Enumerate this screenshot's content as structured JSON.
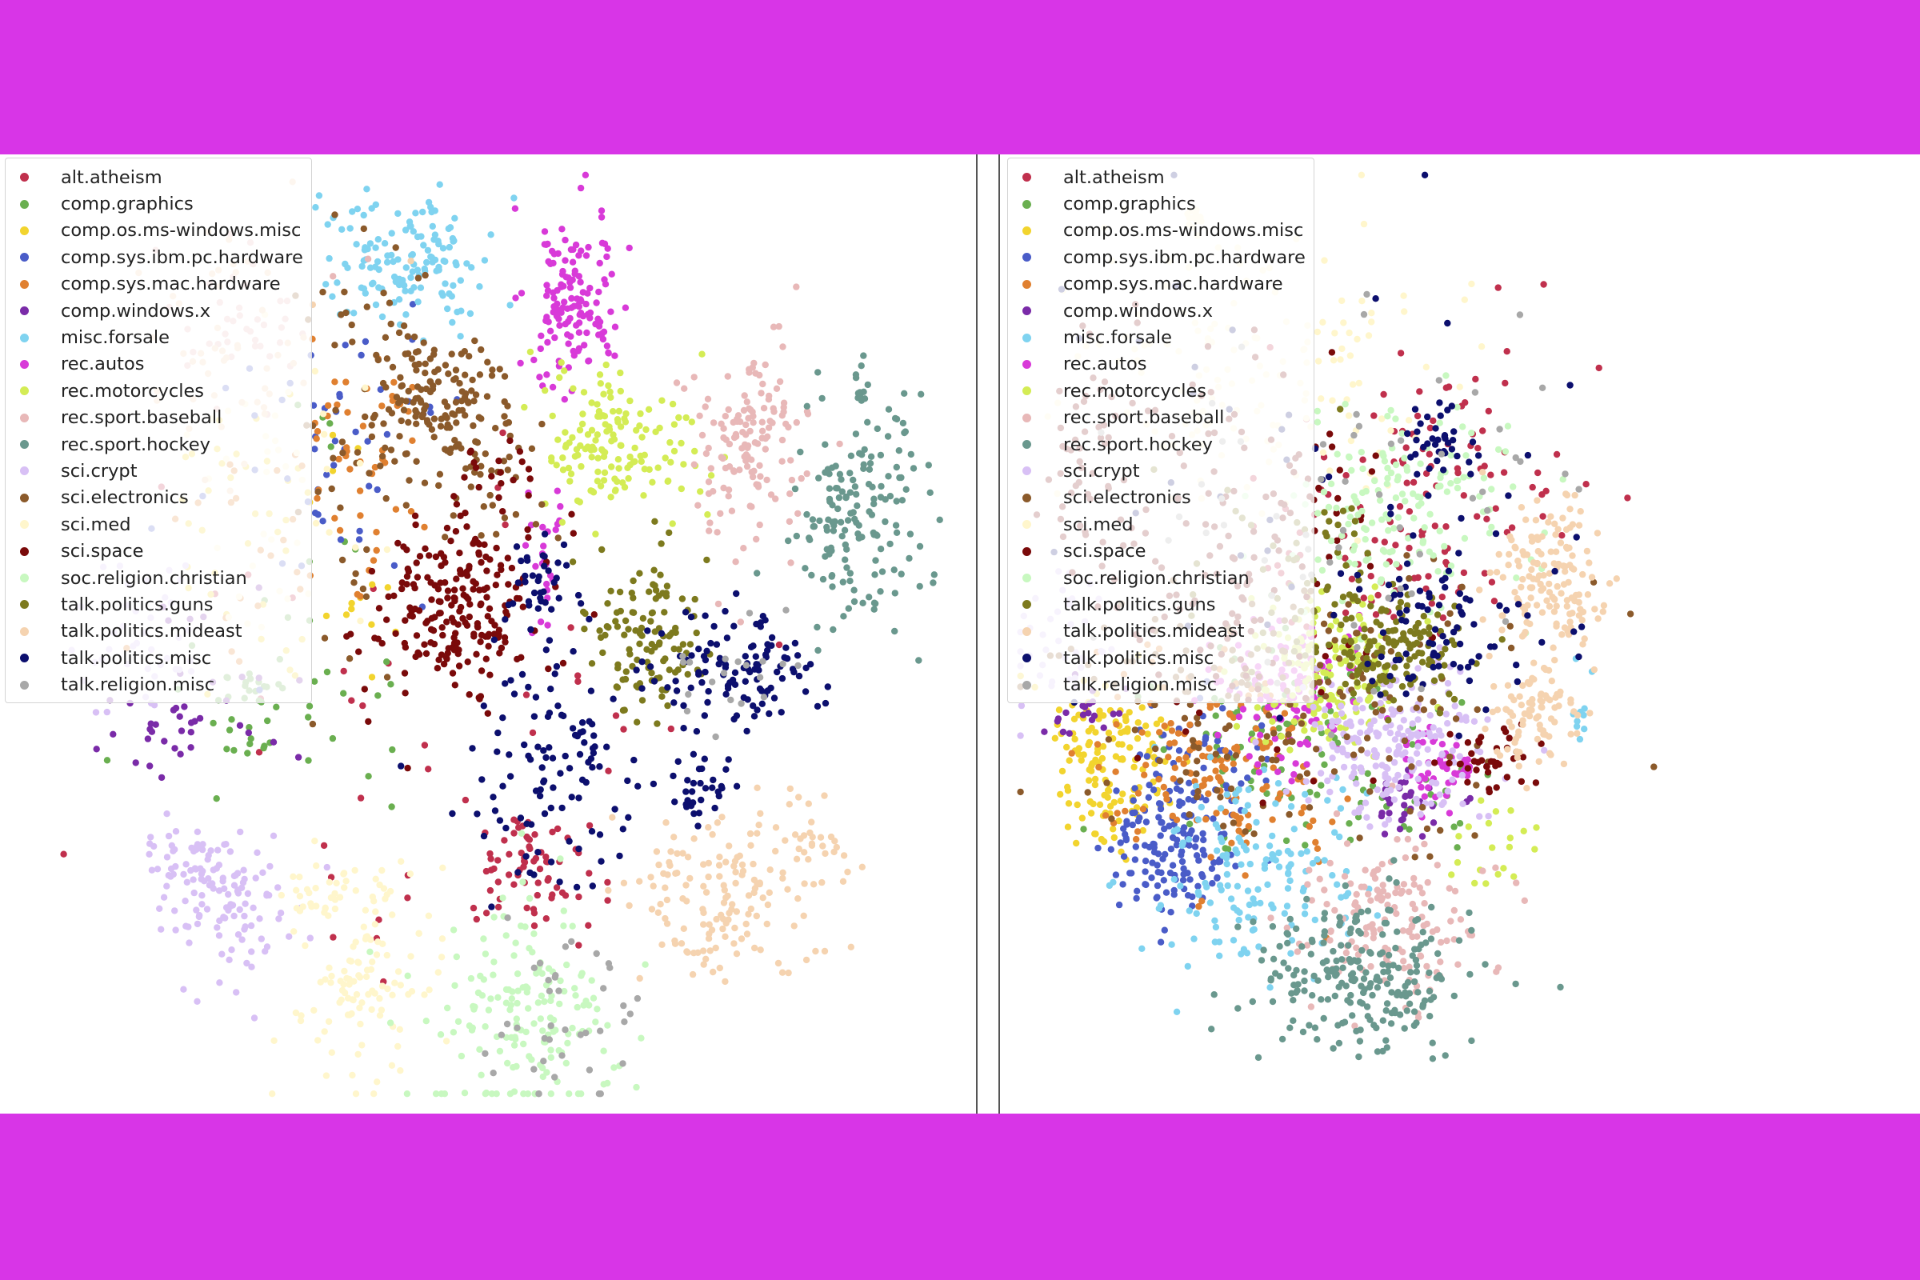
{
  "chart_data": [
    {
      "type": "scatter",
      "legend": "upper-left",
      "grid": false,
      "series": [
        {
          "name": "alt.atheism",
          "color": "#c0304d",
          "clusters": [
            [
              0.54,
              0.75,
              0.035,
              0.035,
              70
            ],
            [
              0.45,
              0.62,
              0.15,
              0.13,
              40
            ]
          ]
        },
        {
          "name": "comp.graphics",
          "color": "#6aaf50",
          "clusters": [
            [
              0.25,
              0.58,
              0.03,
              0.025,
              35
            ],
            [
              0.3,
              0.5,
              0.08,
              0.1,
              25
            ]
          ]
        },
        {
          "name": "comp.os.ms-windows.misc",
          "color": "#f2d42e",
          "clusters": [
            [
              0.24,
              0.38,
              0.05,
              0.08,
              30
            ],
            [
              0.33,
              0.45,
              0.06,
              0.08,
              20
            ]
          ]
        },
        {
          "name": "comp.sys.ibm.pc.hardware",
          "color": "#4a5cc8",
          "clusters": [
            [
              0.36,
              0.26,
              0.05,
              0.06,
              30
            ],
            [
              0.3,
              0.35,
              0.06,
              0.08,
              20
            ]
          ]
        },
        {
          "name": "comp.sys.mac.hardware",
          "color": "#e08030",
          "clusters": [
            [
              0.36,
              0.3,
              0.04,
              0.06,
              45
            ],
            [
              0.28,
              0.38,
              0.06,
              0.08,
              25
            ]
          ]
        },
        {
          "name": "comp.windows.x",
          "color": "#7a2ba8",
          "clusters": [
            [
              0.16,
              0.6,
              0.04,
              0.03,
              25
            ],
            [
              0.2,
              0.55,
              0.06,
              0.05,
              15
            ]
          ]
        },
        {
          "name": "misc.forsale",
          "color": "#7fd3f0",
          "clusters": [
            [
              0.42,
              0.1,
              0.045,
              0.035,
              140
            ]
          ]
        },
        {
          "name": "rec.autos",
          "color": "#d83ad8",
          "clusters": [
            [
              0.585,
              0.14,
              0.025,
              0.05,
              140
            ],
            [
              0.56,
              0.42,
              0.01,
              0.03,
              25
            ]
          ]
        },
        {
          "name": "rec.motorcycles",
          "color": "#d4ec55",
          "clusters": [
            [
              0.63,
              0.29,
              0.04,
              0.04,
              150
            ]
          ]
        },
        {
          "name": "rec.sport.baseball",
          "color": "#e8b8b8",
          "clusters": [
            [
              0.77,
              0.3,
              0.03,
              0.06,
              140
            ],
            [
              0.25,
              0.15,
              0.04,
              0.04,
              40
            ]
          ]
        },
        {
          "name": "rec.sport.hockey",
          "color": "#6a988e",
          "clusters": [
            [
              0.89,
              0.37,
              0.035,
              0.06,
              160
            ],
            [
              0.89,
              0.23,
              0.005,
              0.02,
              12
            ]
          ]
        },
        {
          "name": "sci.crypt",
          "color": "#d8c0f5",
          "clusters": [
            [
              0.24,
              0.8,
              0.035,
              0.04,
              80
            ],
            [
              0.19,
              0.75,
              0.025,
              0.025,
              60
            ],
            [
              0.14,
              0.5,
              0.03,
              0.05,
              40
            ]
          ]
        },
        {
          "name": "sci.electronics",
          "color": "#8b5a2b",
          "clusters": [
            [
              0.45,
              0.24,
              0.04,
              0.04,
              130
            ],
            [
              0.38,
              0.27,
              0.04,
              0.1,
              60
            ],
            [
              0.5,
              0.33,
              0.03,
              0.04,
              40
            ]
          ]
        },
        {
          "name": "sci.med",
          "color": "#fff6cc",
          "clusters": [
            [
              0.37,
              0.86,
              0.035,
              0.06,
              120
            ],
            [
              0.32,
              0.78,
              0.02,
              0.02,
              25
            ],
            [
              0.28,
              0.35,
              0.05,
              0.08,
              40
            ]
          ]
        },
        {
          "name": "sci.space",
          "color": "#7a0a0a",
          "clusters": [
            [
              0.47,
              0.47,
              0.045,
              0.05,
              220
            ],
            [
              0.51,
              0.33,
              0.02,
              0.02,
              20
            ]
          ]
        },
        {
          "name": "soc.religion.christian",
          "color": "#c8f8c0",
          "clusters": [
            [
              0.55,
              0.9,
              0.05,
              0.06,
              170
            ]
          ]
        },
        {
          "name": "talk.politics.guns",
          "color": "#7d7a1e",
          "clusters": [
            [
              0.67,
              0.5,
              0.03,
              0.04,
              120
            ]
          ]
        },
        {
          "name": "talk.politics.mideast",
          "color": "#f5d3b0",
          "clusters": [
            [
              0.74,
              0.78,
              0.05,
              0.05,
              150
            ],
            [
              0.84,
              0.73,
              0.02,
              0.02,
              25
            ],
            [
              0.25,
              0.2,
              0.05,
              0.08,
              50
            ]
          ]
        },
        {
          "name": "talk.politics.misc",
          "color": "#0c0f6e",
          "clusters": [
            [
              0.58,
              0.64,
              0.05,
              0.06,
              110
            ],
            [
              0.76,
              0.54,
              0.04,
              0.03,
              110
            ],
            [
              0.56,
              0.46,
              0.02,
              0.03,
              40
            ],
            [
              0.73,
              0.67,
              0.02,
              0.02,
              30
            ]
          ]
        },
        {
          "name": "talk.religion.misc",
          "color": "#a8a8a8",
          "clusters": [
            [
              0.58,
              0.92,
              0.04,
              0.06,
              40
            ],
            [
              0.76,
              0.54,
              0.04,
              0.03,
              20
            ]
          ]
        }
      ]
    },
    {
      "type": "scatter",
      "legend": "upper-left",
      "grid": false,
      "series": [
        {
          "name": "alt.atheism",
          "color": "#c0304d",
          "clusters": [
            [
              0.4,
              0.38,
              0.08,
              0.06,
              90
            ],
            [
              0.5,
              0.3,
              0.08,
              0.08,
              50
            ]
          ]
        },
        {
          "name": "comp.graphics",
          "color": "#6aaf50",
          "clusters": [
            [
              0.3,
              0.62,
              0.08,
              0.06,
              100
            ],
            [
              0.45,
              0.68,
              0.03,
              0.02,
              20
            ]
          ]
        },
        {
          "name": "comp.os.ms-windows.misc",
          "color": "#f2d42e",
          "clusters": [
            [
              0.11,
              0.63,
              0.035,
              0.05,
              140
            ]
          ]
        },
        {
          "name": "comp.sys.ibm.pc.hardware",
          "color": "#4a5cc8",
          "clusters": [
            [
              0.17,
              0.73,
              0.03,
              0.04,
              130
            ],
            [
              0.2,
              0.65,
              0.05,
              0.05,
              60
            ]
          ]
        },
        {
          "name": "comp.sys.mac.hardware",
          "color": "#e08030",
          "clusters": [
            [
              0.23,
              0.64,
              0.07,
              0.06,
              160
            ]
          ]
        },
        {
          "name": "comp.windows.x",
          "color": "#7a2ba8",
          "clusters": [
            [
              0.44,
              0.69,
              0.025,
              0.02,
              30
            ],
            [
              0.08,
              0.59,
              0.03,
              0.02,
              20
            ]
          ]
        },
        {
          "name": "misc.forsale",
          "color": "#7fd3f0",
          "clusters": [
            [
              0.27,
              0.76,
              0.06,
              0.05,
              150
            ],
            [
              0.62,
              0.58,
              0.02,
              0.02,
              10
            ]
          ]
        },
        {
          "name": "rec.autos",
          "color": "#d83ad8",
          "clusters": [
            [
              0.3,
              0.56,
              0.04,
              0.04,
              110
            ],
            [
              0.47,
              0.64,
              0.025,
              0.025,
              50
            ]
          ]
        },
        {
          "name": "rec.motorcycles",
          "color": "#d4ec55",
          "clusters": [
            [
              0.35,
              0.54,
              0.04,
              0.04,
              150
            ],
            [
              0.52,
              0.72,
              0.03,
              0.03,
              20
            ]
          ]
        },
        {
          "name": "rec.sport.baseball",
          "color": "#e8b8b8",
          "clusters": [
            [
              0.42,
              0.81,
              0.05,
              0.05,
              150
            ]
          ]
        },
        {
          "name": "rec.sport.hockey",
          "color": "#6a988e",
          "clusters": [
            [
              0.38,
              0.87,
              0.06,
              0.04,
              230
            ]
          ]
        },
        {
          "name": "sci.crypt",
          "color": "#d8c0f5",
          "clusters": [
            [
              0.42,
              0.62,
              0.05,
              0.04,
              200
            ],
            [
              0.05,
              0.5,
              0.03,
              0.04,
              40
            ]
          ]
        },
        {
          "name": "sci.electronics",
          "color": "#8b5a2b",
          "clusters": [
            [
              0.28,
              0.58,
              0.1,
              0.07,
              130
            ],
            [
              0.4,
              0.6,
              0.1,
              0.1,
              50
            ]
          ]
        },
        {
          "name": "sci.med",
          "color": "#fff6cc",
          "clusters": [
            [
              0.28,
              0.22,
              0.1,
              0.07,
              150
            ],
            [
              0.2,
              0.05,
              0.01,
              0.01,
              15
            ]
          ]
        },
        {
          "name": "sci.space",
          "color": "#7a0a0a",
          "clusters": [
            [
              0.25,
              0.4,
              0.08,
              0.12,
              150
            ],
            [
              0.53,
              0.63,
              0.03,
              0.02,
              40
            ],
            [
              0.07,
              0.3,
              0.02,
              0.06,
              40
            ]
          ]
        },
        {
          "name": "soc.religion.christian",
          "color": "#c8f8c0",
          "clusters": [
            [
              0.43,
              0.36,
              0.06,
              0.05,
              150
            ]
          ]
        },
        {
          "name": "talk.politics.guns",
          "color": "#7d7a1e",
          "clusters": [
            [
              0.43,
              0.52,
              0.04,
              0.03,
              130
            ],
            [
              0.33,
              0.44,
              0.06,
              0.05,
              60
            ]
          ]
        },
        {
          "name": "talk.politics.mideast",
          "color": "#f5d3b0",
          "clusters": [
            [
              0.59,
              0.43,
              0.03,
              0.04,
              130
            ],
            [
              0.58,
              0.58,
              0.025,
              0.03,
              90
            ],
            [
              0.62,
              0.48,
              0.01,
              0.02,
              15
            ]
          ]
        },
        {
          "name": "talk.politics.misc",
          "color": "#0c0f6e",
          "clusters": [
            [
              0.48,
              0.48,
              0.06,
              0.06,
              90
            ],
            [
              0.47,
              0.29,
              0.015,
              0.02,
              30
            ],
            [
              0.3,
              0.3,
              0.15,
              0.15,
              40
            ]
          ]
        },
        {
          "name": "talk.religion.misc",
          "color": "#a8a8a8",
          "clusters": [
            [
              0.33,
              0.4,
              0.1,
              0.1,
              50
            ],
            [
              0.55,
              0.3,
              0.05,
              0.05,
              10
            ]
          ]
        }
      ]
    }
  ]
}
